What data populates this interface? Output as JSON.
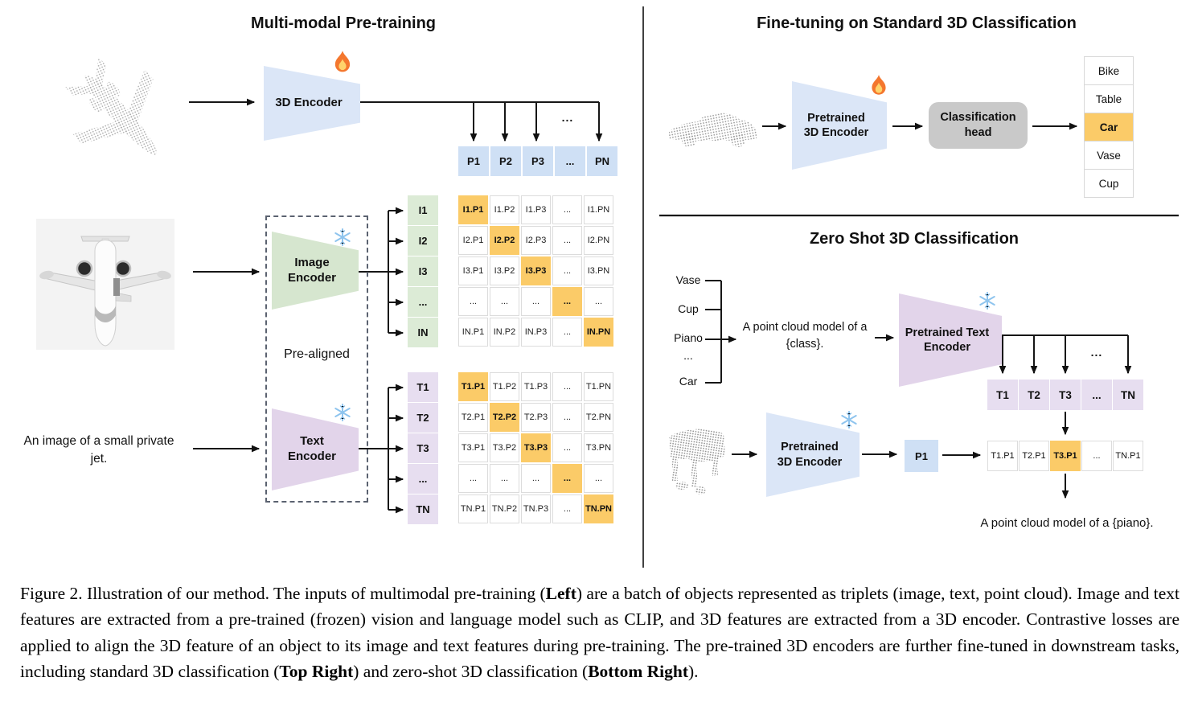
{
  "pretraining": {
    "title": "Multi-modal Pre-training",
    "encoder3d": "3D Encoder",
    "image_encoder": "Image Encoder",
    "text_encoder": "Text Encoder",
    "prealigned": "Pre-aligned",
    "caption_input": "An image of a small private jet.",
    "dots": "...",
    "p_row": [
      "P1",
      "P2",
      "P3",
      "...",
      "PN"
    ],
    "i_col": [
      "I1",
      "I2",
      "I3",
      "...",
      "IN"
    ],
    "t_col": [
      "T1",
      "T2",
      "T3",
      "...",
      "TN"
    ],
    "i_matrix": [
      [
        "I1.P1",
        "I1.P2",
        "I1.P3",
        "...",
        "I1.PN"
      ],
      [
        "I2.P1",
        "I2.P2",
        "I2.P3",
        "...",
        "I2.PN"
      ],
      [
        "I3.P1",
        "I3.P2",
        "I3.P3",
        "...",
        "I3.PN"
      ],
      [
        "...",
        "...",
        "...",
        "...",
        "..."
      ],
      [
        "IN.P1",
        "IN.P2",
        "IN.P3",
        "...",
        "IN.PN"
      ]
    ],
    "t_matrix": [
      [
        "T1.P1",
        "T1.P2",
        "T1.P3",
        "...",
        "T1.PN"
      ],
      [
        "T2.P1",
        "T2.P2",
        "T2.P3",
        "...",
        "T2.PN"
      ],
      [
        "T3.P1",
        "T3.P2",
        "T3.P3",
        "...",
        "T3.PN"
      ],
      [
        "...",
        "...",
        "...",
        "...",
        "..."
      ],
      [
        "TN.P1",
        "TN.P2",
        "TN.P3",
        "...",
        "TN.PN"
      ]
    ]
  },
  "finetune": {
    "title": "Fine-tuning on Standard 3D Classification",
    "encoder": "Pretrained 3D Encoder",
    "head": "Classification head",
    "classes": [
      "Bike",
      "Table",
      "Car",
      "Vase",
      "Cup"
    ],
    "highlighted_class": "Car"
  },
  "zeroshot": {
    "title": "Zero Shot 3D Classification",
    "classes": [
      "Vase",
      "Cup",
      "Piano",
      "...",
      "Car"
    ],
    "prompt": "A point cloud model of a {class}.",
    "text_encoder": "Pretrained Text Encoder",
    "encoder3d": "Pretrained 3D Encoder",
    "t_row": [
      "T1",
      "T2",
      "T3",
      "...",
      "TN"
    ],
    "p1": "P1",
    "sim_row": [
      "T1.P1",
      "T2.P1",
      "T3.P1",
      "...",
      "TN.P1"
    ],
    "highlighted_sim": "T3.P1",
    "dots": "...",
    "result": "A point cloud model of a {piano}."
  },
  "caption": {
    "p1": "Figure 2. Illustration of our method.  The inputs of multimodal pre-training (",
    "b1": "Left",
    "p2": ") are a batch of objects represented as triplets (image, text, point cloud).  Image and text features are extracted from a pre-trained (frozen) vision and language model such as CLIP, and 3D features are extracted from a 3D encoder.  Contrastive losses are applied to align the 3D feature of an object to its image and text features during pre-training.  The pre-trained 3D encoders are further fine-tuned in downstream tasks, including standard 3D classification (",
    "b2": "Top Right",
    "p3": ") and zero-shot 3D classification (",
    "b3": "Bottom Right",
    "p4": ")."
  },
  "colors": {
    "blue": "#dbe6f7",
    "blue_cell": "#cfe0f5",
    "green": "#d6e6cf",
    "green_cell": "#dcebd6",
    "purple": "#e2d4ea",
    "purple_cell": "#e7def0",
    "highlight": "#fbcb68",
    "head_gray": "#c9c9c9"
  }
}
